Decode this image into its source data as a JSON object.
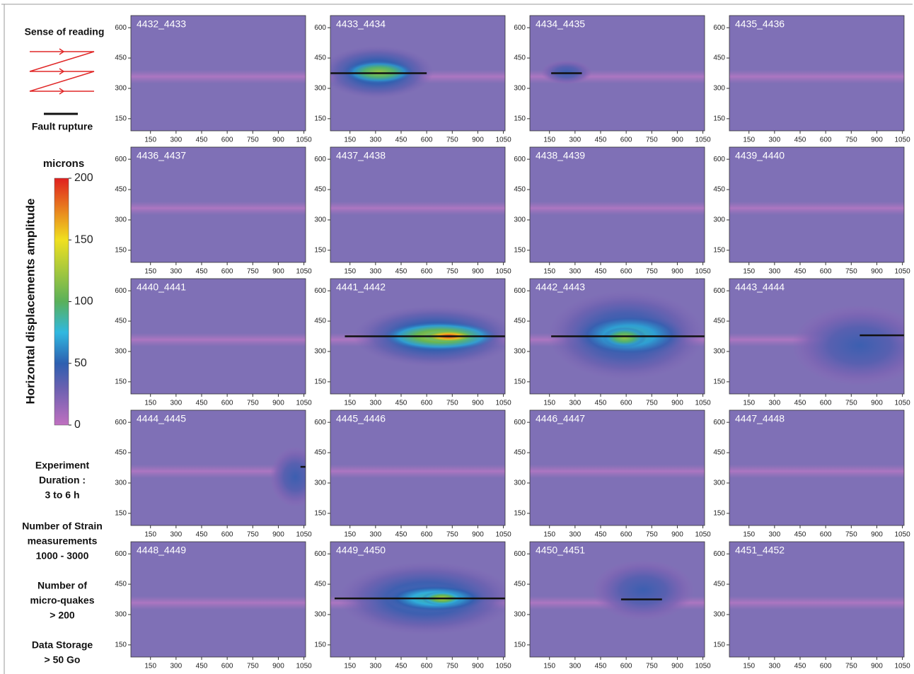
{
  "chart_data": {
    "type": "heatmap-grid",
    "xlim": [
      35,
      1060
    ],
    "ylim": [
      90,
      660
    ],
    "xticks": [
      150,
      300,
      450,
      600,
      750,
      900,
      1050
    ],
    "yticks": [
      150,
      300,
      450,
      600
    ],
    "panels": [
      {
        "label": "4432_4433"
      },
      {
        "label": "4433_4434",
        "rupture": {
          "x": [
            35,
            600
          ],
          "y": 375
        },
        "zones": [
          {
            "x": 310,
            "y": 380,
            "rx": 330,
            "ry": 130,
            "peak": 60
          },
          {
            "x": 320,
            "y": 380,
            "rx": 200,
            "ry": 55,
            "peak": 120
          }
        ]
      },
      {
        "label": "4434_4435",
        "rupture": {
          "x": [
            160,
            340
          ],
          "y": 375
        },
        "zones": [
          {
            "x": 250,
            "y": 380,
            "rx": 150,
            "ry": 60,
            "peak": 45
          }
        ]
      },
      {
        "label": "4435_4436"
      },
      {
        "label": "4436_4437"
      },
      {
        "label": "4437_4438"
      },
      {
        "label": "4438_4439"
      },
      {
        "label": "4439_4440"
      },
      {
        "label": "4440_4441"
      },
      {
        "label": "4441_4442",
        "rupture": {
          "x": [
            120,
            1060
          ],
          "y": 375
        },
        "zones": [
          {
            "x": 650,
            "y": 375,
            "rx": 480,
            "ry": 150,
            "peak": 60
          },
          {
            "x": 680,
            "y": 375,
            "rx": 330,
            "ry": 70,
            "peak": 130
          },
          {
            "x": 730,
            "y": 375,
            "rx": 150,
            "ry": 30,
            "peak": 200
          }
        ]
      },
      {
        "label": "4442_4443",
        "rupture": {
          "x": [
            160,
            1060
          ],
          "y": 375
        },
        "zones": [
          {
            "x": 600,
            "y": 380,
            "rx": 460,
            "ry": 220,
            "peak": 55
          },
          {
            "x": 620,
            "y": 380,
            "rx": 330,
            "ry": 110,
            "peak": 85
          },
          {
            "x": 590,
            "y": 370,
            "rx": 130,
            "ry": 50,
            "peak": 120
          }
        ]
      },
      {
        "label": "4443_4444",
        "rupture": {
          "x": [
            800,
            1060
          ],
          "y": 380
        },
        "zones": [
          {
            "x": 800,
            "y": 330,
            "rx": 400,
            "ry": 200,
            "peak": 45
          }
        ]
      },
      {
        "label": "4444_4445",
        "rupture": {
          "x": [
            1030,
            1060
          ],
          "y": 380
        },
        "zones": [
          {
            "x": 1000,
            "y": 330,
            "rx": 150,
            "ry": 150,
            "peak": 45
          }
        ]
      },
      {
        "label": "4445_4446"
      },
      {
        "label": "4446_4447"
      },
      {
        "label": "4447_4448"
      },
      {
        "label": "4448_4449"
      },
      {
        "label": "4449_4450",
        "rupture": {
          "x": [
            60,
            1060
          ],
          "y": 380
        },
        "zones": [
          {
            "x": 600,
            "y": 380,
            "rx": 520,
            "ry": 180,
            "peak": 55
          },
          {
            "x": 650,
            "y": 380,
            "rx": 300,
            "ry": 70,
            "peak": 90
          },
          {
            "x": 690,
            "y": 380,
            "rx": 120,
            "ry": 35,
            "peak": 130
          }
        ]
      },
      {
        "label": "4450_4451",
        "rupture": {
          "x": [
            570,
            810
          ],
          "y": 375
        },
        "zones": [
          {
            "x": 700,
            "y": 420,
            "rx": 300,
            "ry": 150,
            "peak": 45
          }
        ]
      },
      {
        "label": "4451_4452"
      }
    ],
    "colorbar": {
      "title": "microns",
      "label": "Horizontal displacements amplitude",
      "lim": [
        0,
        200
      ],
      "ticks": [
        0,
        50,
        100,
        150,
        200
      ]
    },
    "legend": {
      "reading": "Sense of reading",
      "rupture": "Fault rupture"
    },
    "notes": [
      [
        "Experiment",
        "Duration :",
        "3 to 6 h"
      ],
      [
        "Number of Strain",
        "measurements",
        "1000 - 3000"
      ],
      [
        "Number of",
        "micro-quakes",
        "> 200"
      ],
      [
        "Data Storage",
        "> 50 Go"
      ]
    ]
  }
}
